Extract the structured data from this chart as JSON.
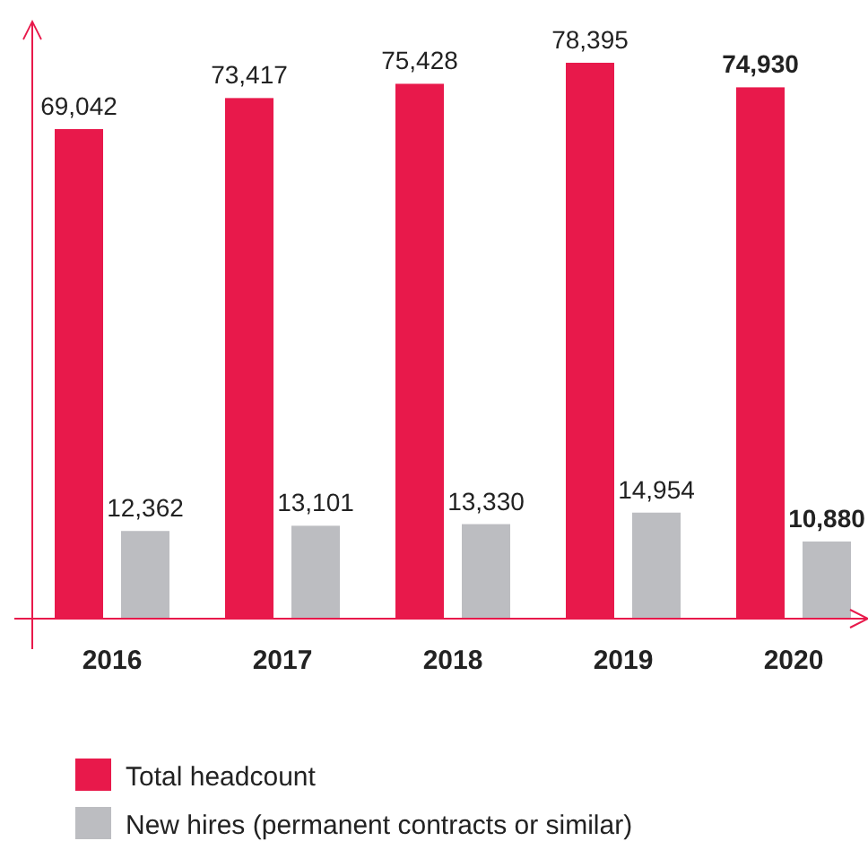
{
  "chart_data": {
    "type": "bar",
    "categories": [
      "2016",
      "2017",
      "2018",
      "2019",
      "2020"
    ],
    "series": [
      {
        "name": "Total headcount",
        "color": "#e8194b",
        "values": [
          69042,
          73417,
          75428,
          78395,
          74930
        ],
        "value_labels": [
          "69,042",
          "73,417",
          "75,428",
          "78,395",
          "74,930"
        ]
      },
      {
        "name": "New hires (permanent contracts or similar)",
        "color": "#bcbdc1",
        "values": [
          12362,
          13101,
          13330,
          14954,
          10880
        ],
        "value_labels": [
          "12,362",
          "13,101",
          "13,330",
          "14,954",
          "10,880"
        ]
      }
    ],
    "legend": "bottom"
  }
}
